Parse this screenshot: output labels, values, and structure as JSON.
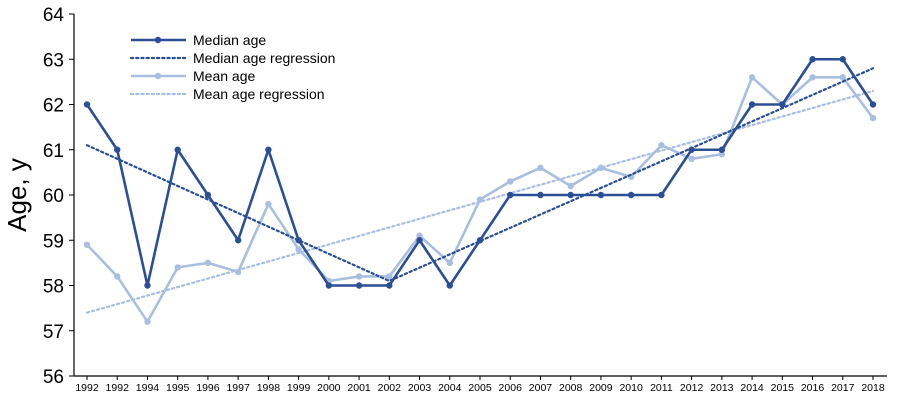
{
  "chart_data": {
    "type": "line",
    "title": "",
    "xlabel": "",
    "ylabel": "Age, y",
    "ylim": [
      56,
      64
    ],
    "yticks": [
      "56",
      "57",
      "58",
      "59",
      "60",
      "61",
      "62",
      "63",
      "64"
    ],
    "categories": [
      "1992",
      "1992",
      "1994",
      "1995",
      "1996",
      "1997",
      "1998",
      "1999",
      "2000",
      "2001",
      "2002",
      "2003",
      "2004",
      "2005",
      "2006",
      "2007",
      "2008",
      "2009",
      "2010",
      "2011",
      "2012",
      "2013",
      "2014",
      "2015",
      "2016",
      "2017",
      "2018"
    ],
    "grid": false,
    "legend_position": "top-left",
    "series": [
      {
        "name": "Median age",
        "kind": "line",
        "color": "#2b4f95",
        "values": [
          62,
          61,
          58,
          61,
          60,
          59,
          61,
          59,
          58,
          58,
          58,
          59,
          58,
          59,
          60,
          60,
          60,
          60,
          60,
          60,
          61,
          61,
          62,
          62,
          63,
          63,
          62
        ]
      },
      {
        "name": "Median age regression",
        "kind": "regression",
        "color": "#2b4f95",
        "values": [
          61.1,
          null,
          null,
          null,
          null,
          null,
          null,
          null,
          null,
          null,
          58.1,
          null,
          null,
          null,
          null,
          null,
          null,
          null,
          null,
          null,
          null,
          null,
          null,
          null,
          null,
          null,
          62.8
        ]
      },
      {
        "name": "Mean age",
        "kind": "line",
        "color": "#a9bfe0",
        "values": [
          58.9,
          58.2,
          57.2,
          58.4,
          58.5,
          58.3,
          59.8,
          58.8,
          58.1,
          58.2,
          58.2,
          59.1,
          58.5,
          59.9,
          60.3,
          60.6,
          60.2,
          60.6,
          60.4,
          61.1,
          60.8,
          60.9,
          62.6,
          62.0,
          62.6,
          62.6,
          61.7
        ]
      },
      {
        "name": "Mean age regression",
        "kind": "regression",
        "color": "#a9bfe0",
        "values": [
          57.4,
          null,
          null,
          null,
          null,
          null,
          null,
          null,
          null,
          null,
          null,
          null,
          null,
          null,
          null,
          null,
          null,
          null,
          null,
          null,
          null,
          null,
          null,
          null,
          null,
          null,
          62.3
        ]
      }
    ]
  }
}
